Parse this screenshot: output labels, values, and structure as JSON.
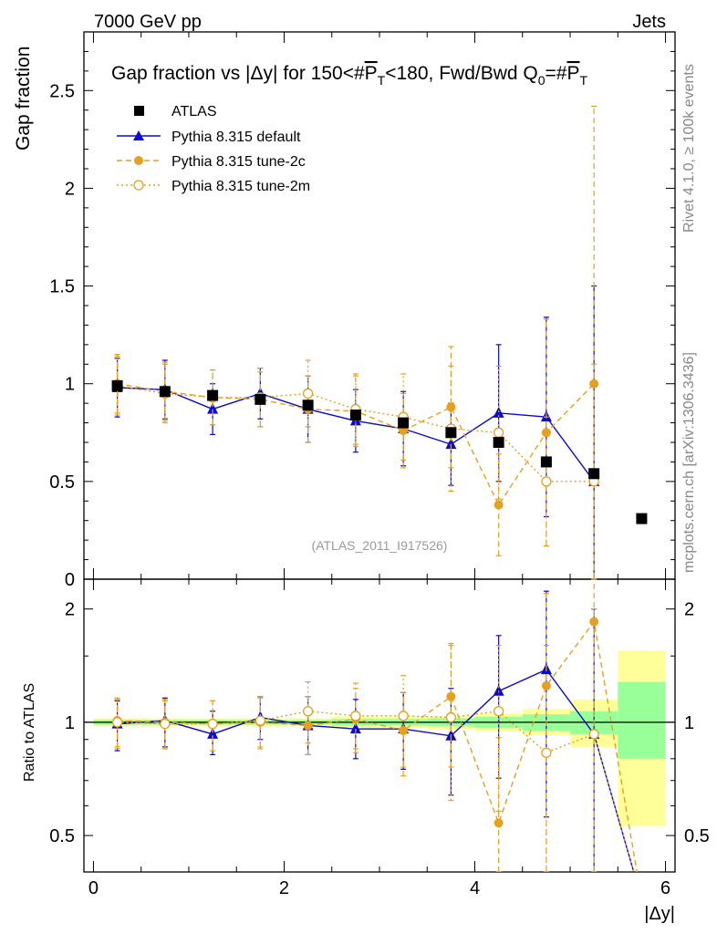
{
  "header": {
    "energy_label": "7000 GeV pp",
    "category_label": "Jets",
    "side_label_top": "Rivet 4.1.0, ≥ 100k events",
    "side_label_bottom": "mcplots.cern.ch [arXiv:1306.3436]"
  },
  "colors": {
    "atlas": "#000000",
    "default": "#0a0ad0",
    "tune2c": "#e6a020",
    "tune2m": "#e6a020",
    "band_inner": "#99ff99",
    "band_outer": "#ffff99"
  },
  "chart_data": [
    {
      "type": "scatter",
      "title_parts": {
        "a": "Gap fraction vs |Δy| for 150<#",
        "b": "P",
        "c": "T",
        "d": "<180, Fwd/Bwd Q",
        "e": "0",
        "f": "=#",
        "g": "P",
        "h": "T"
      },
      "ylabel": "Gap fraction",
      "ylim": [
        0,
        2.8
      ],
      "xlim": [
        -0.1,
        6.1
      ],
      "yticks": [
        0,
        0.5,
        1,
        1.5,
        2,
        2.5
      ],
      "ytick_labels": [
        "0",
        "0.5",
        "1",
        "1.5",
        "2",
        "2.5"
      ],
      "watermark": "(ATLAS_2011_I917526)",
      "legend": [
        "ATLAS",
        "Pythia 8.315 default",
        "Pythia 8.315 tune-2c",
        "Pythia 8.315 tune-2m"
      ],
      "x": [
        0.25,
        0.75,
        1.25,
        1.75,
        2.25,
        2.75,
        3.25,
        3.75,
        4.25,
        4.75,
        5.25,
        5.75
      ],
      "series": [
        {
          "name": "ATLAS",
          "values": [
            0.99,
            0.96,
            0.94,
            0.92,
            0.89,
            0.84,
            0.8,
            0.75,
            0.7,
            0.6,
            0.54,
            0.31
          ]
        },
        {
          "name": "Pythia 8.315 default",
          "values": [
            0.98,
            0.97,
            0.87,
            0.95,
            0.87,
            0.81,
            0.77,
            0.69,
            0.85,
            0.83,
            0.5
          ],
          "err": [
            0.15,
            0.15,
            0.13,
            0.13,
            0.17,
            0.16,
            0.19,
            0.21,
            0.35,
            0.51,
            1.0
          ]
        },
        {
          "name": "Pythia 8.315 tune-2c",
          "values": [
            1.0,
            0.96,
            0.93,
            0.92,
            0.87,
            0.86,
            0.76,
            0.88,
            0.38,
            0.75,
            1.0
          ],
          "err": [
            0.15,
            0.15,
            0.14,
            0.14,
            0.17,
            0.18,
            0.19,
            0.31,
            0.26,
            0.58,
            1.42
          ]
        },
        {
          "name": "Pythia 8.315 tune-2m",
          "values": [
            0.99,
            0.95,
            0.93,
            0.93,
            0.95,
            0.87,
            0.83,
            0.77,
            0.75,
            0.5,
            0.5
          ],
          "err": [
            0.15,
            0.15,
            0.14,
            0.15,
            0.17,
            0.18,
            0.22,
            0.32,
            0.34,
            0.33,
            0.6
          ]
        }
      ]
    },
    {
      "type": "scatter",
      "ylabel": "Ratio to ATLAS",
      "xlabel": "|Δy|",
      "ylim_log": [
        0.4,
        2.4
      ],
      "xlim": [
        -0.1,
        6.1
      ],
      "yticks": [
        0.5,
        1,
        2
      ],
      "ytick_labels": [
        "0.5",
        "1",
        "2"
      ],
      "xticks": [
        0,
        2,
        4,
        6
      ],
      "xtick_labels": [
        "0",
        "2",
        "4",
        "6"
      ],
      "bands": [
        {
          "x0": 0,
          "x1": 0.5,
          "inner": [
            0.985,
            1.015
          ],
          "outer": [
            0.975,
            1.025
          ]
        },
        {
          "x0": 0.5,
          "x1": 1.0,
          "inner": [
            0.985,
            1.015
          ],
          "outer": [
            0.975,
            1.025
          ]
        },
        {
          "x0": 1.0,
          "x1": 1.5,
          "inner": [
            0.985,
            1.015
          ],
          "outer": [
            0.975,
            1.025
          ]
        },
        {
          "x0": 1.5,
          "x1": 2.0,
          "inner": [
            0.985,
            1.015
          ],
          "outer": [
            0.975,
            1.025
          ]
        },
        {
          "x0": 2.0,
          "x1": 2.5,
          "inner": [
            0.985,
            1.015
          ],
          "outer": [
            0.975,
            1.025
          ]
        },
        {
          "x0": 2.5,
          "x1": 3.0,
          "inner": [
            0.98,
            1.02
          ],
          "outer": [
            0.965,
            1.035
          ]
        },
        {
          "x0": 3.0,
          "x1": 3.5,
          "inner": [
            0.98,
            1.02
          ],
          "outer": [
            0.965,
            1.035
          ]
        },
        {
          "x0": 3.5,
          "x1": 4.0,
          "inner": [
            0.975,
            1.025
          ],
          "outer": [
            0.96,
            1.04
          ]
        },
        {
          "x0": 4.0,
          "x1": 4.5,
          "inner": [
            0.965,
            1.035
          ],
          "outer": [
            0.95,
            1.055
          ]
        },
        {
          "x0": 4.5,
          "x1": 5.0,
          "inner": [
            0.95,
            1.05
          ],
          "outer": [
            0.925,
            1.085
          ]
        },
        {
          "x0": 5.0,
          "x1": 5.5,
          "inner": [
            0.93,
            1.07
          ],
          "outer": [
            0.86,
            1.15
          ]
        },
        {
          "x0": 5.5,
          "x1": 6.0,
          "inner": [
            0.8,
            1.28
          ],
          "outer": [
            0.53,
            1.55
          ]
        }
      ],
      "x": [
        0.25,
        0.75,
        1.25,
        1.75,
        2.25,
        2.75,
        3.25,
        3.75,
        4.25,
        4.75,
        5.25
      ],
      "series": [
        {
          "name": "Pythia 8.315 default",
          "values": [
            0.99,
            1.01,
            0.93,
            1.03,
            0.98,
            0.96,
            0.96,
            0.92,
            1.21,
            1.38,
            0.93
          ],
          "lo": [
            0.84,
            0.86,
            0.82,
            0.9,
            0.82,
            0.8,
            0.75,
            0.64,
            0.71,
            0.56,
            0.4
          ],
          "hi": [
            1.14,
            1.16,
            1.07,
            1.17,
            1.17,
            1.15,
            1.2,
            1.23,
            1.7,
            2.23,
            2.0
          ]
        },
        {
          "name": "Pythia 8.315 tune-2c",
          "values": [
            1.01,
            1.0,
            0.99,
            1.0,
            0.98,
            1.02,
            0.95,
            1.17,
            0.54,
            1.25,
            1.85
          ],
          "lo": [
            0.86,
            0.85,
            0.84,
            0.86,
            0.82,
            0.83,
            0.72,
            0.76,
            0.4,
            0.4,
            0.4
          ],
          "hi": [
            1.16,
            1.15,
            1.14,
            1.16,
            1.17,
            1.23,
            1.2,
            1.62,
            0.91,
            2.2,
            2.4
          ]
        },
        {
          "name": "Pythia 8.315 tune-2m",
          "values": [
            1.0,
            0.99,
            0.99,
            1.01,
            1.07,
            1.04,
            1.04,
            1.03,
            1.07,
            0.83,
            0.93
          ],
          "lo": [
            0.85,
            0.85,
            0.84,
            0.85,
            0.88,
            0.85,
            0.76,
            0.62,
            0.58,
            0.4,
            0.4
          ],
          "hi": [
            1.15,
            1.14,
            1.14,
            1.17,
            1.28,
            1.27,
            1.33,
            1.6,
            1.6,
            1.6,
            2.0
          ]
        }
      ]
    }
  ]
}
